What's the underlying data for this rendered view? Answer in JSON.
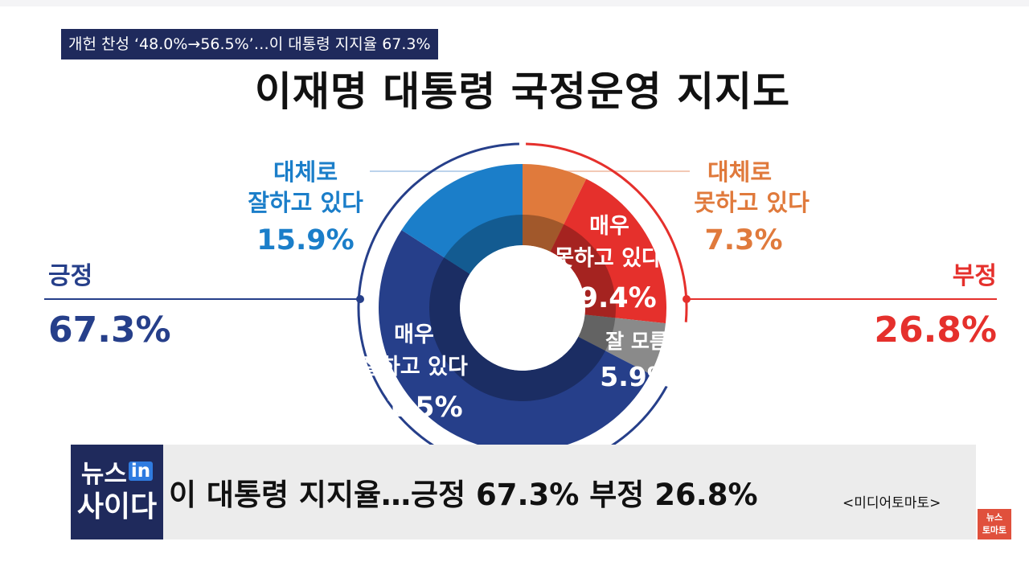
{
  "headline": "개헌 찬성 ‘48.0%→56.5%’…이 대통령 지지율 67.3%",
  "chart_data": {
    "type": "pie",
    "title": "이재명 대통령 국정운영 지지도",
    "slices": [
      {
        "label": "대체로 못하고 있다",
        "value": 7.3,
        "color": "#e07a3c"
      },
      {
        "label": "매우 못하고 있다",
        "value": 19.4,
        "color": "#e5302c"
      },
      {
        "label": "잘 모름",
        "value": 5.9,
        "color": "#8a8a8a"
      },
      {
        "label": "매우 잘하고 있다",
        "value": 51.5,
        "color": "#263f8a"
      },
      {
        "label": "대체로 잘하고 있다",
        "value": 15.9,
        "color": "#1b7ec9"
      }
    ],
    "groups": [
      {
        "label": "긍정",
        "value": "67.3%",
        "color": "#263f8a"
      },
      {
        "label": "부정",
        "value": "26.8%",
        "color": "#e5302c"
      }
    ],
    "legend": "none"
  },
  "labels": {
    "dc_good_l1": "대체로",
    "dc_good_l2": "잘하고 있다",
    "dc_good_v": "15.9%",
    "dc_bad_l1": "대체로",
    "dc_bad_l2": "못하고 있다",
    "dc_bad_v": "7.3%",
    "very_bad_l1": "매우",
    "very_bad_l2": "못하고 있다",
    "very_bad_v": "19.4%",
    "dk_l1": "잘 모름",
    "dk_v": "5.9%",
    "very_good_l1": "매우",
    "very_good_l2": "잘하고 있다",
    "very_good_v": "51.5%",
    "pos_label": "긍정",
    "pos_value": "67.3%",
    "neg_label": "부정",
    "neg_value": "26.8%"
  },
  "lower_third": {
    "logo_line1": "뉴스",
    "logo_in": "in",
    "logo_line2": "사이다",
    "text": "이 대통령 지지율…긍정 67.3% 부정 26.8%",
    "source": "<미디어토마토>"
  },
  "badge": {
    "line1": "뉴스",
    "line2": "토마토"
  },
  "colors": {
    "positive": "#263f8a",
    "positive_light": "#1b7ec9",
    "negative": "#e5302c",
    "negative_light": "#e07a3c",
    "unknown": "#8a8a8a",
    "headline_bg": "#1f2a5c"
  }
}
